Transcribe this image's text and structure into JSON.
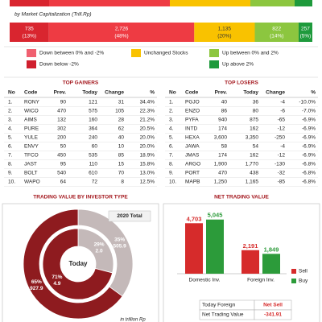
{
  "market_cap": {
    "subtitle": "by Market Capitalization (Trill.Rp)",
    "values": [
      735,
      2726,
      1135,
      822,
      257
    ],
    "value_labels": [
      "735",
      "2,726",
      "1,135",
      "822",
      "257"
    ],
    "percents": [
      13,
      48,
      20,
      14,
      5
    ],
    "percent_labels": [
      "(13%)",
      "(48%)",
      "(20%)",
      "(14%)",
      "(5%)"
    ],
    "colors": [
      "#d9252f",
      "#ee3b43",
      "#f9c200",
      "#8cc63f",
      "#1e9a3c"
    ]
  },
  "legend": [
    {
      "label": "Down between 0% and -2%",
      "color": "#f06070"
    },
    {
      "label": "Down below -2%",
      "color": "#d01f2e"
    },
    {
      "label": "Unchanged Stocks",
      "color": "#f9c200"
    },
    {
      "label": "Up between 0% and 2%",
      "color": "#8cc63f"
    },
    {
      "label": "Up above 2%",
      "color": "#1e9a3c"
    }
  ],
  "gainers": {
    "title": "TOP GAINERS",
    "columns": [
      "No",
      "Code",
      "Prev.",
      "Today",
      "Change",
      "%"
    ],
    "rows": [
      [
        "1.",
        "RONY",
        "90",
        "121",
        "31",
        "34.4%"
      ],
      [
        "2.",
        "WICO",
        "470",
        "575",
        "105",
        "22.3%"
      ],
      [
        "3.",
        "AIMS",
        "132",
        "160",
        "28",
        "21.2%"
      ],
      [
        "4.",
        "PURE",
        "302",
        "364",
        "62",
        "20.5%"
      ],
      [
        "5.",
        "YULE",
        "200",
        "240",
        "40",
        "20.0%"
      ],
      [
        "6.",
        "ENVY",
        "50",
        "60",
        "10",
        "20.0%"
      ],
      [
        "7.",
        "TFCO",
        "450",
        "535",
        "85",
        "18.9%"
      ],
      [
        "8.",
        "JAST",
        "95",
        "110",
        "15",
        "15.8%"
      ],
      [
        "9.",
        "BOLT",
        "540",
        "610",
        "70",
        "13.0%"
      ],
      [
        "10.",
        "WAPO",
        "64",
        "72",
        "8",
        "12.5%"
      ]
    ]
  },
  "losers": {
    "title": "TOP LOSERS",
    "columns": [
      "No",
      "Code",
      "Prev.",
      "Today",
      "Change",
      "%"
    ],
    "rows": [
      [
        "1.",
        "PGJO",
        "40",
        "36",
        "-4",
        "-10.0%"
      ],
      [
        "2.",
        "ENZO",
        "86",
        "80",
        "-6",
        "-7.0%"
      ],
      [
        "3.",
        "PYFA",
        "940",
        "875",
        "-65",
        "-6.9%"
      ],
      [
        "4.",
        "INTD",
        "174",
        "162",
        "-12",
        "-6.9%"
      ],
      [
        "5.",
        "HEXA",
        "3,600",
        "3,350",
        "-250",
        "-6.9%"
      ],
      [
        "6.",
        "JAWA",
        "58",
        "54",
        "-4",
        "-6.9%"
      ],
      [
        "7.",
        "JMAS",
        "174",
        "162",
        "-12",
        "-6.9%"
      ],
      [
        "8.",
        "ARGO",
        "1,900",
        "1,770",
        "-130",
        "-6.8%"
      ],
      [
        "9.",
        "PORT",
        "470",
        "438",
        "-32",
        "-6.8%"
      ],
      [
        "10.",
        "MAPB",
        "1,250",
        "1,165",
        "-85",
        "-6.8%"
      ]
    ]
  },
  "investor_chart": {
    "type": "donut",
    "title": "TRADING VALUE BY INVESTOR TYPE",
    "outer_label": "2020 Total",
    "center_label": "Today",
    "unit_note": "in trillion Rp",
    "colors": [
      "#c4b9b9",
      "#8e1b1f"
    ],
    "outer": {
      "values": [
        35,
        65
      ],
      "value_labels": [
        "35%",
        "65%"
      ],
      "amounts": [
        505.9,
        927.9
      ],
      "amount_labels": [
        "505.9",
        "927.9"
      ]
    },
    "inner": {
      "values": [
        29,
        71
      ],
      "value_labels": [
        "29%",
        "71%"
      ],
      "amounts": [
        2.0,
        4.9
      ],
      "amount_labels": [
        "2.0",
        "4.9"
      ]
    }
  },
  "net_chart": {
    "type": "bar",
    "title": "NET TRADING VALUE",
    "categories": [
      "Domestic Inv.",
      "Foreign Inv."
    ],
    "series": [
      {
        "name": "Sell",
        "color": "#d62b2b",
        "values": [
          4703,
          2191
        ],
        "value_labels": [
          "4,703",
          "2,191"
        ]
      },
      {
        "name": "Buy",
        "color": "#2c9b3a",
        "values": [
          5045,
          1849
        ],
        "value_labels": [
          "5,045",
          "1,849"
        ]
      }
    ],
    "ylim": [
      0,
      6000
    ],
    "table": [
      [
        "Today Foreign",
        "Net Sell"
      ],
      [
        "Net Trading Value",
        "-341.91"
      ]
    ]
  }
}
